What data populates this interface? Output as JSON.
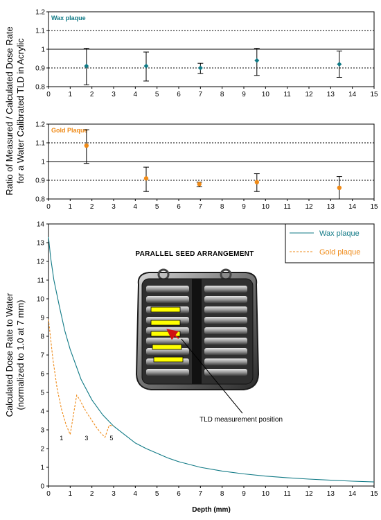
{
  "chart_data": [
    {
      "type": "scatter",
      "label": "Wax plaque",
      "color": "#117a86",
      "x": [
        1.75,
        4.5,
        7.0,
        9.6,
        13.4
      ],
      "y": [
        0.91,
        0.91,
        0.9,
        0.94,
        0.92
      ],
      "err_low": [
        0.81,
        0.83,
        0.87,
        0.86,
        0.85
      ],
      "err_high": [
        1.005,
        0.985,
        0.925,
        1.005,
        0.99
      ],
      "xlim": [
        0,
        15
      ],
      "ylim": [
        0.8,
        1.2
      ],
      "yticks": [
        "0.8",
        "0.9",
        "1",
        "1.1",
        "1.2"
      ],
      "xticks": [
        "0",
        "1",
        "2",
        "3",
        "4",
        "5",
        "6",
        "7",
        "8",
        "9",
        "10",
        "11",
        "12",
        "13",
        "14",
        "15"
      ],
      "grid": {
        "solid": [
          1.0
        ],
        "dashed": [
          0.9,
          1.1
        ]
      }
    },
    {
      "type": "scatter",
      "label": "Gold Plaque",
      "color": "#ef8a17",
      "x": [
        1.75,
        4.5,
        6.95,
        9.6,
        13.4
      ],
      "y": [
        1.085,
        0.91,
        0.88,
        0.89,
        0.86
      ],
      "err_low": [
        0.99,
        0.84,
        0.865,
        0.84,
        0.8
      ],
      "err_high": [
        1.17,
        0.97,
        0.89,
        0.935,
        0.92
      ],
      "xlim": [
        0,
        15
      ],
      "ylim": [
        0.8,
        1.2
      ],
      "yticks": [
        "0.8",
        "0.9",
        "1",
        "1.1",
        "1.2"
      ],
      "xticks": [
        "0",
        "1",
        "2",
        "3",
        "4",
        "5",
        "6",
        "7",
        "8",
        "9",
        "10",
        "11",
        "12",
        "13",
        "14",
        "15"
      ],
      "grid": {
        "solid": [
          1.0
        ],
        "dashed": [
          0.9,
          1.1
        ]
      }
    },
    {
      "type": "line",
      "title": "PARALLEL SEED ARRANGEMENT",
      "xlabel": "Depth (mm)",
      "ylabel_line1": "Calculated Dose Rate to Water",
      "ylabel_line2": "(normalized to 1.0 at 7 mm)",
      "xlim": [
        0,
        15
      ],
      "ylim": [
        0,
        14
      ],
      "xticks": [
        "0",
        "1",
        "2",
        "3",
        "4",
        "5",
        "6",
        "7",
        "8",
        "9",
        "10",
        "11",
        "12",
        "13",
        "14",
        "15"
      ],
      "yticks": [
        "0",
        "1",
        "2",
        "3",
        "4",
        "5",
        "6",
        "7",
        "8",
        "9",
        "10",
        "11",
        "12",
        "13",
        "14"
      ],
      "legend_position": "top-right",
      "series": [
        {
          "name": "Wax plaque",
          "color": "#117a86",
          "style": "solid",
          "x": [
            0,
            0.1,
            0.25,
            0.5,
            0.75,
            1.0,
            1.5,
            2.0,
            2.5,
            3.0,
            3.5,
            4.0,
            4.5,
            5.0,
            5.5,
            6.0,
            7.0,
            8.0,
            9.0,
            10.0,
            11.0,
            12.0,
            13.0,
            14.0,
            15.0
          ],
          "y": [
            13.3,
            12.2,
            11.0,
            9.6,
            8.3,
            7.3,
            5.7,
            4.6,
            3.8,
            3.2,
            2.75,
            2.3,
            2.0,
            1.75,
            1.5,
            1.3,
            1.0,
            0.8,
            0.65,
            0.53,
            0.44,
            0.37,
            0.31,
            0.26,
            0.22
          ]
        },
        {
          "name": "Gold plaque",
          "color": "#ef8a17",
          "style": "dashed",
          "x": [
            0,
            0.2,
            0.4,
            0.6,
            0.8,
            1.0,
            1.15,
            1.3,
            1.45,
            1.6,
            1.8,
            2.0,
            2.2,
            2.4,
            2.6,
            2.8,
            3.0
          ],
          "y": [
            8.9,
            6.8,
            5.2,
            4.1,
            3.3,
            2.75,
            3.8,
            4.85,
            4.6,
            4.25,
            3.85,
            3.5,
            3.15,
            2.85,
            2.6,
            3.25,
            3.2
          ]
        }
      ],
      "annotations": [
        {
          "text": "1",
          "x": 0.6,
          "y": 2.45
        },
        {
          "text": "3",
          "x": 1.75,
          "y": 2.45
        },
        {
          "text": "5",
          "x": 2.9,
          "y": 2.45
        }
      ],
      "callout": "TLD measurement position",
      "highlight_color": "#ffff00",
      "arrow_color": "#d01010"
    }
  ],
  "shared_ylabel_line1": "Ratio of Measured / Calculated Dose Rate",
  "shared_ylabel_line2": "for a Water Calibrated TLD in Acrylic"
}
